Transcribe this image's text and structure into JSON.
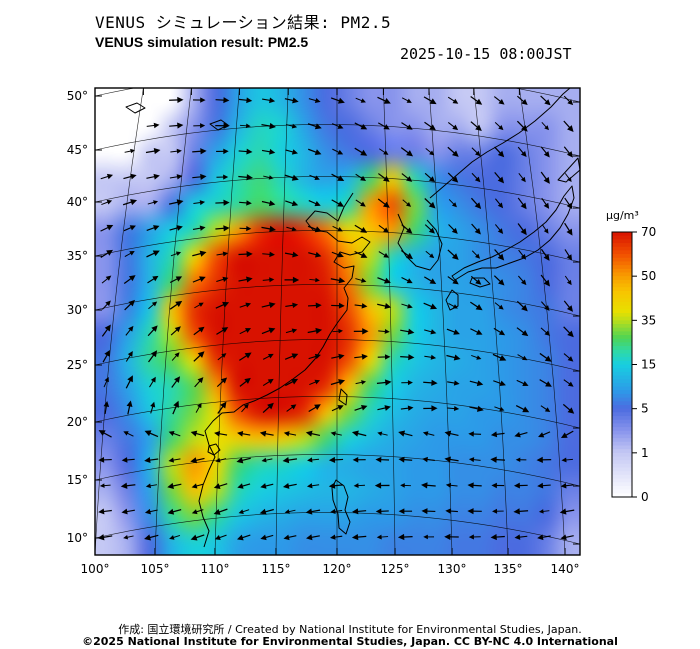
{
  "header": {
    "title_ja": "VENUS シミュレーション結果: PM2.5",
    "title_en": "VENUS simulation result: PM2.5",
    "datetime": "2025-10-15 08:00JST"
  },
  "footer": {
    "credit": "作成:  国立環境研究所 / Created by National Institute for Environmental Studies, Japan.",
    "license": "©2025 National Institute for Environmental Studies, Japan. CC BY-NC 4.0 International"
  },
  "chart_data": {
    "type": "heatmap",
    "title": "VENUS simulation result: PM2.5",
    "unit": "µg/m³",
    "lon_range": [
      100,
      141.5
    ],
    "lat_range": [
      9.9,
      50
    ],
    "lon_ticks": [
      "100°",
      "105°",
      "110°",
      "115°",
      "120°",
      "125°",
      "130°",
      "135°",
      "140°"
    ],
    "lat_ticks": [
      "50°",
      "45°",
      "40°",
      "35°",
      "30°",
      "25°",
      "20°",
      "15°",
      "10°"
    ],
    "colorbar_ticks": [
      70,
      50,
      35,
      15,
      5,
      1,
      0
    ],
    "legend_position": "right",
    "grid": true,
    "colormap": [
      {
        "v": 0,
        "c": "#ffffff"
      },
      {
        "v": 1,
        "c": "#c4c8f4"
      },
      {
        "v": 3,
        "c": "#8894ec"
      },
      {
        "v": 5,
        "c": "#4c6ce0"
      },
      {
        "v": 9,
        "c": "#2d9ae8"
      },
      {
        "v": 15,
        "c": "#18cfe0"
      },
      {
        "v": 21,
        "c": "#2fd9a6"
      },
      {
        "v": 27,
        "c": "#4ed455"
      },
      {
        "v": 33,
        "c": "#9fdc2a"
      },
      {
        "v": 38,
        "c": "#e8e000"
      },
      {
        "v": 45,
        "c": "#f8c300"
      },
      {
        "v": 52,
        "c": "#f88d00"
      },
      {
        "v": 60,
        "c": "#f14f00"
      },
      {
        "v": 70,
        "c": "#d81200"
      }
    ],
    "values": [
      [
        0,
        0,
        0,
        0,
        2,
        5,
        10,
        14,
        12,
        8,
        5,
        4,
        3,
        3,
        2,
        2,
        1,
        1,
        2,
        2,
        2,
        2
      ],
      [
        0,
        0,
        0,
        1,
        3,
        6,
        12,
        18,
        16,
        10,
        6,
        5,
        4,
        3,
        3,
        2,
        2,
        1,
        3,
        3,
        3,
        2
      ],
      [
        0,
        0,
        1,
        1,
        4,
        10,
        16,
        20,
        15,
        12,
        8,
        6,
        5,
        4,
        4,
        3,
        4,
        4,
        5,
        4,
        3,
        2
      ],
      [
        1,
        1,
        1,
        2,
        5,
        14,
        20,
        24,
        18,
        12,
        10,
        12,
        25,
        42,
        20,
        8,
        6,
        5,
        5,
        4,
        3,
        2
      ],
      [
        1,
        2,
        2,
        6,
        15,
        18,
        22,
        26,
        22,
        18,
        15,
        20,
        50,
        60,
        30,
        10,
        8,
        6,
        5,
        4,
        3,
        2
      ],
      [
        3,
        6,
        10,
        15,
        20,
        35,
        50,
        65,
        70,
        65,
        55,
        40,
        45,
        50,
        25,
        12,
        10,
        8,
        6,
        5,
        4,
        3
      ],
      [
        3,
        6,
        12,
        20,
        40,
        60,
        70,
        70,
        70,
        70,
        65,
        50,
        35,
        18,
        12,
        10,
        10,
        8,
        7,
        6,
        5,
        4
      ],
      [
        3,
        6,
        12,
        25,
        55,
        65,
        70,
        70,
        70,
        70,
        68,
        55,
        30,
        15,
        12,
        10,
        10,
        9,
        8,
        7,
        5,
        4
      ],
      [
        3,
        7,
        14,
        45,
        65,
        70,
        70,
        70,
        70,
        70,
        70,
        60,
        45,
        35,
        15,
        12,
        10,
        10,
        8,
        7,
        6,
        4
      ],
      [
        5,
        10,
        20,
        35,
        60,
        70,
        70,
        70,
        70,
        70,
        70,
        65,
        50,
        30,
        15,
        12,
        10,
        10,
        9,
        8,
        6,
        5
      ],
      [
        6,
        12,
        22,
        28,
        40,
        65,
        70,
        70,
        70,
        70,
        70,
        60,
        40,
        20,
        14,
        12,
        11,
        10,
        9,
        8,
        7,
        5
      ],
      [
        6,
        10,
        16,
        20,
        28,
        50,
        70,
        70,
        70,
        70,
        65,
        45,
        25,
        15,
        12,
        11,
        10,
        10,
        9,
        8,
        7,
        5
      ],
      [
        5,
        8,
        14,
        22,
        30,
        40,
        60,
        70,
        70,
        65,
        45,
        30,
        18,
        13,
        11,
        10,
        10,
        9,
        9,
        8,
        7,
        5
      ],
      [
        4,
        6,
        10,
        25,
        35,
        38,
        42,
        45,
        42,
        35,
        25,
        16,
        13,
        11,
        10,
        9,
        9,
        9,
        8,
        8,
        7,
        5
      ],
      [
        3,
        5,
        12,
        35,
        50,
        40,
        25,
        20,
        18,
        15,
        12,
        11,
        10,
        10,
        9,
        9,
        8,
        8,
        8,
        7,
        6,
        5
      ],
      [
        2,
        4,
        10,
        30,
        45,
        35,
        20,
        15,
        14,
        13,
        12,
        12,
        11,
        10,
        9,
        9,
        8,
        8,
        7,
        7,
        6,
        4
      ],
      [
        1,
        3,
        8,
        22,
        30,
        22,
        14,
        12,
        11,
        10,
        10,
        10,
        9,
        9,
        8,
        8,
        7,
        7,
        6,
        6,
        5,
        3
      ],
      [
        1,
        2,
        5,
        12,
        16,
        14,
        10,
        9,
        9,
        8,
        8,
        8,
        8,
        7,
        7,
        7,
        6,
        6,
        5,
        5,
        4,
        2
      ]
    ],
    "wind": {
      "note": "arrow directions, degrees counter-clockwise from east",
      "angles": [
        [
          10,
          5,
          0,
          355,
          350,
          345,
          340,
          335,
          330,
          325,
          320,
          315
        ],
        [
          15,
          10,
          5,
          0,
          350,
          340,
          330,
          325,
          320,
          315,
          310,
          310
        ],
        [
          20,
          15,
          10,
          0,
          345,
          335,
          325,
          320,
          315,
          310,
          305,
          305
        ],
        [
          30,
          25,
          15,
          5,
          350,
          340,
          330,
          320,
          315,
          310,
          305,
          300
        ],
        [
          45,
          40,
          30,
          20,
          10,
          0,
          350,
          340,
          330,
          320,
          310,
          305
        ],
        [
          60,
          55,
          45,
          35,
          25,
          15,
          5,
          355,
          345,
          335,
          325,
          315
        ],
        [
          70,
          65,
          55,
          45,
          35,
          25,
          15,
          5,
          355,
          345,
          335,
          325
        ],
        [
          180,
          185,
          190,
          195,
          190,
          185,
          180,
          175,
          170,
          175,
          180,
          185
        ],
        [
          185,
          190,
          195,
          200,
          195,
          190,
          185,
          180,
          175,
          180,
          185,
          190
        ],
        [
          190,
          195,
          200,
          200,
          195,
          190,
          185,
          185,
          180,
          185,
          190,
          195
        ]
      ]
    }
  }
}
